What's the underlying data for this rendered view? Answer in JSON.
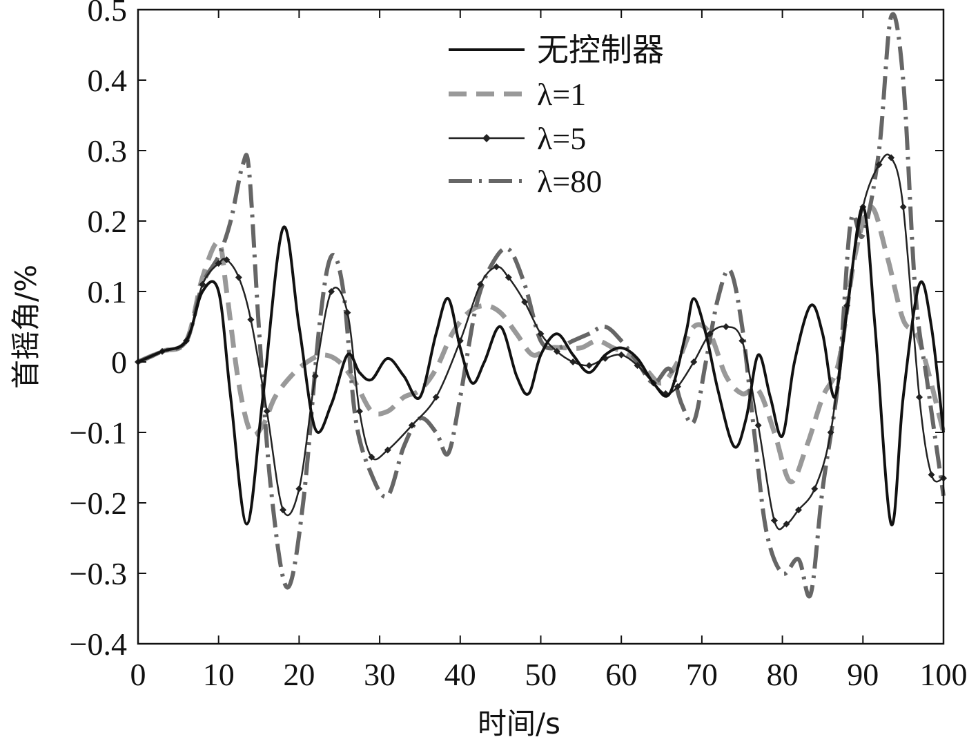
{
  "chart_data": {
    "type": "line",
    "title": "",
    "xlabel": "时间/s",
    "ylabel": "首摇角/%",
    "xlim": [
      0,
      100
    ],
    "ylim": [
      -0.4,
      0.5
    ],
    "xticks": [
      0,
      10,
      20,
      30,
      40,
      50,
      60,
      70,
      80,
      90,
      100
    ],
    "yticks": [
      0.5,
      0.4,
      0.3,
      0.2,
      0.1,
      0,
      -0.1,
      -0.2,
      -0.3,
      -0.4
    ],
    "xtick_labels": [
      "0",
      "10",
      "20",
      "30",
      "40",
      "50",
      "60",
      "70",
      "80",
      "90",
      "100"
    ],
    "ytick_labels": [
      "0.5",
      "0.4",
      "0.3",
      "0.2",
      "0.1",
      "0",
      "−0.1",
      "−0.2",
      "−0.3",
      "−0.4"
    ],
    "grid": false,
    "legend_position": "top-center",
    "series": [
      {
        "name": "无控制器",
        "style": "solid",
        "color": "#111111",
        "x": [
          0,
          3,
          6,
          8,
          10,
          11.5,
          13.5,
          15.5,
          18,
          20,
          22,
          24,
          26,
          27.5,
          29,
          31,
          33,
          35,
          37,
          38.5,
          40,
          41.5,
          43,
          45,
          47,
          48.5,
          50,
          52,
          54,
          56,
          58,
          60,
          62,
          64,
          66,
          68,
          69,
          70.5,
          72,
          74,
          75.5,
          77,
          78.5,
          80,
          81.5,
          83.5,
          85,
          86.5,
          88,
          90,
          91.5,
          93.5,
          95,
          97,
          98.5,
          100
        ],
        "y": [
          0,
          0.015,
          0.03,
          0.1,
          0.1,
          -0.05,
          -0.23,
          -0.05,
          0.19,
          0.05,
          -0.095,
          -0.06,
          0.01,
          -0.015,
          -0.025,
          0.005,
          -0.02,
          -0.05,
          0.04,
          0.09,
          0.02,
          -0.03,
          0.0,
          0.05,
          -0.02,
          -0.045,
          0.01,
          0.04,
          0.01,
          -0.015,
          0.01,
          0.02,
          0.005,
          -0.03,
          -0.045,
          0.04,
          0.09,
          0.04,
          -0.04,
          -0.12,
          -0.08,
          0.01,
          -0.05,
          -0.105,
          0.0,
          0.08,
          0.04,
          -0.05,
          0.07,
          0.22,
          0.05,
          -0.23,
          -0.05,
          0.11,
          0.05,
          -0.1
        ]
      },
      {
        "name": "λ=1",
        "style": "dashed",
        "color": "#999999",
        "x": [
          0,
          3,
          6,
          8,
          10,
          11,
          12.5,
          14,
          15.5,
          17,
          19,
          21,
          23,
          25,
          27,
          29,
          31,
          33,
          35,
          37,
          39,
          41,
          43,
          45,
          47,
          49,
          51,
          53,
          55,
          57,
          59,
          61,
          63,
          65,
          67,
          69,
          71,
          73,
          75,
          77,
          79,
          81,
          83,
          85,
          87,
          89,
          91,
          93,
          95,
          97,
          100
        ],
        "y": [
          0,
          0.015,
          0.03,
          0.12,
          0.17,
          0.1,
          -0.03,
          -0.1,
          -0.09,
          -0.05,
          -0.02,
          0.0,
          0.01,
          0.0,
          -0.03,
          -0.07,
          -0.07,
          -0.05,
          -0.04,
          -0.01,
          0.04,
          0.07,
          0.08,
          0.07,
          0.04,
          0.01,
          0.02,
          0.02,
          0.02,
          0.03,
          0.02,
          0.01,
          -0.01,
          -0.03,
          0.0,
          0.05,
          0.04,
          -0.02,
          -0.045,
          -0.04,
          -0.1,
          -0.17,
          -0.12,
          -0.05,
          0.0,
          0.15,
          0.22,
          0.15,
          0.06,
          0.03,
          -0.1
        ]
      },
      {
        "name": "λ=5",
        "style": "solid-diamond",
        "color": "#222222",
        "x": [
          0,
          3,
          6,
          8,
          10,
          11,
          12.5,
          14,
          16,
          18,
          20,
          22,
          24,
          26,
          27.5,
          29,
          31,
          34,
          37,
          40,
          42.5,
          44.5,
          46,
          48,
          50,
          52,
          54,
          56,
          58,
          60,
          62,
          64,
          65.5,
          67,
          69,
          71,
          73,
          75,
          77,
          79,
          80.5,
          82,
          84,
          86,
          88,
          90,
          92,
          93.5,
          95,
          97,
          98.5,
          100
        ],
        "y": [
          0,
          0.015,
          0.03,
          0.11,
          0.14,
          0.145,
          0.12,
          0.06,
          -0.07,
          -0.21,
          -0.18,
          -0.02,
          0.1,
          0.07,
          -0.07,
          -0.135,
          -0.125,
          -0.09,
          -0.05,
          0.03,
          0.11,
          0.135,
          0.12,
          0.085,
          0.04,
          0.015,
          0.0,
          -0.005,
          0.005,
          0.01,
          -0.005,
          -0.03,
          -0.045,
          -0.035,
          0.0,
          0.04,
          0.05,
          0.03,
          -0.09,
          -0.225,
          -0.23,
          -0.21,
          -0.18,
          -0.1,
          0.08,
          0.22,
          0.28,
          0.29,
          0.22,
          -0.05,
          -0.16,
          -0.165
        ]
      },
      {
        "name": "λ=80",
        "style": "dash-dot",
        "color": "#666666",
        "x": [
          0,
          3,
          6,
          8,
          10,
          11.5,
          13,
          13.8,
          15,
          16.5,
          18.5,
          20.5,
          22.5,
          24,
          25.5,
          27,
          29,
          31,
          33,
          35,
          37,
          38.5,
          40,
          42,
          44,
          46,
          48,
          50,
          52,
          54,
          56,
          58,
          60,
          62,
          64,
          66,
          67.5,
          69,
          70.5,
          72,
          73.5,
          75,
          76.5,
          78,
          80,
          82,
          83.5,
          85,
          87,
          88.5,
          90,
          92,
          93.5,
          95,
          96.5,
          98,
          100
        ],
        "y": [
          0,
          0.015,
          0.03,
          0.11,
          0.15,
          0.2,
          0.28,
          0.27,
          0.05,
          -0.18,
          -0.32,
          -0.2,
          0.05,
          0.15,
          0.1,
          -0.08,
          -0.16,
          -0.19,
          -0.12,
          -0.08,
          -0.1,
          -0.13,
          -0.05,
          0.08,
          0.14,
          0.16,
          0.11,
          0.03,
          0.02,
          0.03,
          0.04,
          0.05,
          0.03,
          0.0,
          -0.03,
          -0.01,
          -0.06,
          -0.085,
          0.0,
          0.09,
          0.13,
          0.05,
          -0.1,
          -0.24,
          -0.3,
          -0.28,
          -0.33,
          -0.18,
          -0.02,
          0.2,
          0.18,
          0.3,
          0.49,
          0.4,
          0.1,
          -0.03,
          -0.19
        ]
      }
    ]
  }
}
